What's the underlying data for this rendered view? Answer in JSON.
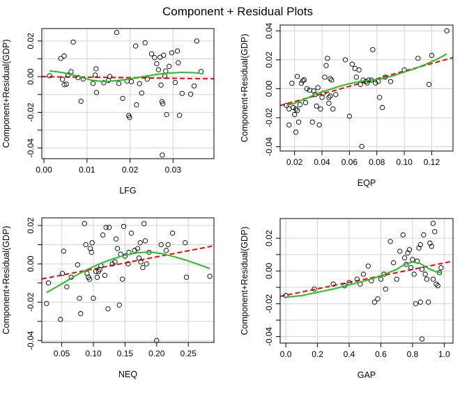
{
  "title": "Component + Residual Plots",
  "colors": {
    "points": "#000000",
    "linear_fit": "#ff0000",
    "smooth": "#22c022",
    "grid": "#d3d3d3"
  },
  "chart_data": [
    {
      "type": "scatter",
      "xlabel": "LFG",
      "ylabel": "Component+Residual(GDP)",
      "xlim": [
        -0.0005,
        0.0395
      ],
      "ylim": [
        -0.046,
        0.027
      ],
      "xticks": [
        0.0,
        0.01,
        0.02,
        0.03
      ],
      "xtick_labels": [
        "0.00",
        "0.01",
        "0.02",
        "0.03"
      ],
      "yticks": [
        -0.04,
        -0.03,
        -0.02,
        -0.01,
        0.0,
        0.01,
        0.02
      ],
      "ytick_labels": [
        "-0.04",
        "",
        "-0.02",
        "",
        "0.00",
        "",
        "0.02"
      ],
      "grid": true,
      "points": [
        [
          0.0013,
          0.0005
        ],
        [
          0.0039,
          0.0102
        ],
        [
          0.0047,
          0.0116
        ],
        [
          0.0043,
          -0.0015
        ],
        [
          0.0047,
          -0.0045
        ],
        [
          0.0052,
          -0.0042
        ],
        [
          0.0056,
          0.0009
        ],
        [
          0.0063,
          0.0028
        ],
        [
          0.0068,
          0.0194
        ],
        [
          0.0079,
          -0.0005
        ],
        [
          0.0086,
          -0.0138
        ],
        [
          0.0091,
          -0.0013
        ],
        [
          0.0114,
          -0.0038
        ],
        [
          0.0119,
          0.0009
        ],
        [
          0.0121,
          0.0044
        ],
        [
          0.0122,
          -0.0089
        ],
        [
          0.0139,
          -0.0034
        ],
        [
          0.015,
          -0.0021
        ],
        [
          0.0153,
          0.0001
        ],
        [
          0.0169,
          0.0248
        ],
        [
          0.0174,
          -0.0038
        ],
        [
          0.0183,
          -0.0122
        ],
        [
          0.0193,
          -0.0025
        ],
        [
          0.0197,
          -0.0218
        ],
        [
          0.0199,
          -0.0229
        ],
        [
          0.0203,
          -0.0028
        ],
        [
          0.0213,
          0.0172
        ],
        [
          0.0215,
          -0.0158
        ],
        [
          0.0222,
          -0.0039
        ],
        [
          0.0227,
          -0.0092
        ],
        [
          0.0235,
          0.019
        ],
        [
          0.024,
          -0.0014
        ],
        [
          0.025,
          0.0128
        ],
        [
          0.0257,
          0.0107
        ],
        [
          0.0262,
          0.0073
        ],
        [
          0.0266,
          0.0039
        ],
        [
          0.027,
          0.0109
        ],
        [
          0.0272,
          -0.0047
        ],
        [
          0.0274,
          -0.014
        ],
        [
          0.0276,
          -0.0152
        ],
        [
          0.0278,
          0.012
        ],
        [
          0.0281,
          0.0003
        ],
        [
          0.0283,
          0.0032
        ],
        [
          0.0275,
          -0.044
        ],
        [
          0.0285,
          -0.0213
        ],
        [
          0.0291,
          0.0058
        ],
        [
          0.0297,
          0.0134
        ],
        [
          0.0305,
          -0.0033
        ],
        [
          0.031,
          0.0144
        ],
        [
          0.0312,
          0.0078
        ],
        [
          0.0315,
          -0.0217
        ],
        [
          0.0321,
          -0.0094
        ],
        [
          0.0341,
          -0.0098
        ],
        [
          0.0349,
          -0.0052
        ],
        [
          0.0355,
          0.02
        ],
        [
          0.0365,
          0.0029
        ]
      ],
      "linear_fit": [
        [
          -0.0005,
          0.0
        ],
        [
          0.0395,
          -0.0012
        ]
      ],
      "smooth": [
        [
          0.0013,
          0.0033
        ],
        [
          0.0045,
          0.0022
        ],
        [
          0.008,
          0.0002
        ],
        [
          0.011,
          -0.002
        ],
        [
          0.014,
          -0.0028
        ],
        [
          0.017,
          -0.0022
        ],
        [
          0.02,
          -0.0013
        ],
        [
          0.023,
          0.0
        ],
        [
          0.026,
          0.0012
        ],
        [
          0.029,
          0.002
        ],
        [
          0.032,
          0.0024
        ],
        [
          0.035,
          0.0022
        ],
        [
          0.037,
          0.0016
        ]
      ]
    },
    {
      "type": "scatter",
      "xlabel": "EQP",
      "ylabel": "Component+Residual(GDP)",
      "xlim": [
        0.0095,
        0.1355
      ],
      "ylim": [
        -0.043,
        0.044
      ],
      "xticks": [
        0.02,
        0.04,
        0.06,
        0.08,
        0.1,
        0.12
      ],
      "xtick_labels": [
        "0.02",
        "0.04",
        "0.06",
        "0.08",
        "0.10",
        "0.12"
      ],
      "yticks": [
        -0.04,
        -0.02,
        0.0,
        0.02,
        0.04
      ],
      "ytick_labels": [
        "-0.04",
        "-0.02",
        "0.00",
        "0.02",
        "0.04"
      ],
      "grid": true,
      "points": [
        [
          0.014,
          -0.0115
        ],
        [
          0.016,
          -0.014
        ],
        [
          0.016,
          -0.025
        ],
        [
          0.018,
          0.0038
        ],
        [
          0.019,
          -0.013
        ],
        [
          0.02,
          -0.0178
        ],
        [
          0.021,
          -0.03
        ],
        [
          0.021,
          -0.014
        ],
        [
          0.022,
          0.0085
        ],
        [
          0.022,
          -0.015
        ],
        [
          0.023,
          -0.023
        ],
        [
          0.024,
          -0.011
        ],
        [
          0.025,
          0.0038
        ],
        [
          0.026,
          0.0055
        ],
        [
          0.027,
          0.0062
        ],
        [
          0.028,
          -0.0096
        ],
        [
          0.029,
          0.0
        ],
        [
          0.031,
          -0.001
        ],
        [
          0.033,
          -0.023
        ],
        [
          0.034,
          -0.0015
        ],
        [
          0.035,
          -0.004
        ],
        [
          0.036,
          -0.012
        ],
        [
          0.037,
          0.0008
        ],
        [
          0.038,
          -0.025
        ],
        [
          0.039,
          -0.014
        ],
        [
          0.04,
          -0.006
        ],
        [
          0.041,
          -0.003
        ],
        [
          0.042,
          0.008
        ],
        [
          0.043,
          0.016
        ],
        [
          0.044,
          0.021
        ],
        [
          0.045,
          -0.01
        ],
        [
          0.045,
          -0.006
        ],
        [
          0.046,
          -0.005
        ],
        [
          0.046,
          0.007
        ],
        [
          0.047,
          0.006
        ],
        [
          0.048,
          -0.014
        ],
        [
          0.05,
          -0.004
        ],
        [
          0.057,
          0.02
        ],
        [
          0.06,
          -0.019
        ],
        [
          0.062,
          0.017
        ],
        [
          0.064,
          0.014
        ],
        [
          0.065,
          0.008
        ],
        [
          0.067,
          0.013
        ],
        [
          0.068,
          0.003
        ],
        [
          0.069,
          -0.0398
        ],
        [
          0.07,
          0.006
        ],
        [
          0.072,
          0.005
        ],
        [
          0.073,
          0.004
        ],
        [
          0.074,
          0.006
        ],
        [
          0.076,
          0.006
        ],
        [
          0.077,
          0.027
        ],
        [
          0.079,
          0.004
        ],
        [
          0.081,
          0.005
        ],
        [
          0.082,
          -0.006
        ],
        [
          0.084,
          -0.013
        ],
        [
          0.086,
          0.008
        ],
        [
          0.09,
          0.005
        ],
        [
          0.1,
          0.013
        ],
        [
          0.11,
          0.021
        ],
        [
          0.118,
          0.003
        ],
        [
          0.12,
          0.023
        ],
        [
          0.131,
          0.04
        ]
      ],
      "linear_fit": [
        [
          0.0095,
          -0.0116
        ],
        [
          0.1355,
          0.0215
        ]
      ],
      "smooth": [
        [
          0.014,
          -0.0115
        ],
        [
          0.02,
          -0.01
        ],
        [
          0.028,
          -0.007
        ],
        [
          0.036,
          -0.0035
        ],
        [
          0.044,
          -0.001
        ],
        [
          0.052,
          0.0015
        ],
        [
          0.06,
          0.0035
        ],
        [
          0.068,
          0.005
        ],
        [
          0.076,
          0.006
        ],
        [
          0.084,
          0.007
        ],
        [
          0.092,
          0.009
        ],
        [
          0.1,
          0.0115
        ],
        [
          0.108,
          0.014
        ],
        [
          0.116,
          0.017
        ],
        [
          0.124,
          0.0205
        ],
        [
          0.131,
          0.024
        ]
      ]
    },
    {
      "type": "scatter",
      "xlabel": "NEQ",
      "ylabel": "Component+Residual(GDP)",
      "xlim": [
        0.0185,
        0.2905
      ],
      "ylim": [
        -0.041,
        0.024
      ],
      "xticks": [
        0.05,
        0.1,
        0.15,
        0.2,
        0.25
      ],
      "xtick_labels": [
        "0.05",
        "0.10",
        "0.15",
        "0.20",
        "0.25"
      ],
      "yticks": [
        -0.04,
        -0.03,
        -0.02,
        -0.01,
        0.0,
        0.01,
        0.02
      ],
      "ytick_labels": [
        "-0.04",
        "",
        "-0.02",
        "",
        "0.00",
        "",
        "0.02"
      ],
      "grid": true,
      "points": [
        [
          0.026,
          -0.0207
        ],
        [
          0.029,
          -0.01
        ],
        [
          0.048,
          -0.029
        ],
        [
          0.051,
          -0.005
        ],
        [
          0.053,
          0.0066
        ],
        [
          0.058,
          -0.012
        ],
        [
          0.065,
          -0.007
        ],
        [
          0.075,
          -0.0005
        ],
        [
          0.078,
          -0.018
        ],
        [
          0.08,
          -0.026
        ],
        [
          0.086,
          0.021
        ],
        [
          0.088,
          0.01
        ],
        [
          0.09,
          -0.005
        ],
        [
          0.092,
          -0.007
        ],
        [
          0.094,
          -0.008
        ],
        [
          0.095,
          0.008
        ],
        [
          0.097,
          0.006
        ],
        [
          0.098,
          0.011
        ],
        [
          0.1,
          -0.018
        ],
        [
          0.104,
          -0.004
        ],
        [
          0.106,
          -0.007
        ],
        [
          0.108,
          -0.004
        ],
        [
          0.11,
          -0.003
        ],
        [
          0.112,
          -0.001
        ],
        [
          0.115,
          0.015
        ],
        [
          0.118,
          -0.006
        ],
        [
          0.12,
          0.019
        ],
        [
          0.123,
          -0.0235
        ],
        [
          0.125,
          0.019
        ],
        [
          0.13,
          0.0
        ],
        [
          0.134,
          0.001
        ],
        [
          0.136,
          0.013
        ],
        [
          0.138,
          0.008
        ],
        [
          0.141,
          -0.0215
        ],
        [
          0.143,
          0.005
        ],
        [
          0.146,
          -0.008
        ],
        [
          0.148,
          0.0195
        ],
        [
          0.15,
          0.004
        ],
        [
          0.155,
          0.0
        ],
        [
          0.156,
          0.006
        ],
        [
          0.16,
          0.016
        ],
        [
          0.165,
          0.007
        ],
        [
          0.17,
          0.008
        ],
        [
          0.172,
          0.003
        ],
        [
          0.174,
          0.011
        ],
        [
          0.175,
          0.001
        ],
        [
          0.178,
          -0.002
        ],
        [
          0.18,
          0.021
        ],
        [
          0.182,
          0.012
        ],
        [
          0.184,
          0.0
        ],
        [
          0.188,
          0.006
        ],
        [
          0.2,
          -0.04
        ],
        [
          0.207,
          0.01
        ],
        [
          0.215,
          0.007
        ],
        [
          0.218,
          0.01
        ],
        [
          0.225,
          0.016
        ],
        [
          0.245,
          0.011
        ],
        [
          0.247,
          -0.007
        ],
        [
          0.284,
          -0.0065
        ]
      ],
      "linear_fit": [
        [
          0.0185,
          -0.0079
        ],
        [
          0.2905,
          0.0094
        ]
      ],
      "smooth": [
        [
          0.026,
          -0.015
        ],
        [
          0.05,
          -0.0105
        ],
        [
          0.07,
          -0.0065
        ],
        [
          0.09,
          -0.003
        ],
        [
          0.11,
          0.0
        ],
        [
          0.13,
          0.0025
        ],
        [
          0.15,
          0.0045
        ],
        [
          0.17,
          0.0058
        ],
        [
          0.19,
          0.0062
        ],
        [
          0.21,
          0.0052
        ],
        [
          0.23,
          0.0035
        ],
        [
          0.25,
          0.0015
        ],
        [
          0.27,
          -0.0008
        ],
        [
          0.284,
          -0.0025
        ]
      ]
    },
    {
      "type": "scatter",
      "xlabel": "GAP",
      "ylabel": "Component+Residual(GDP)",
      "xlim": [
        -0.0355,
        1.0555
      ],
      "ylim": [
        -0.044,
        0.032
      ],
      "xticks": [
        0.0,
        0.2,
        0.4,
        0.6,
        0.8,
        1.0
      ],
      "xtick_labels": [
        "0.0",
        "0.2",
        "0.4",
        "0.6",
        "0.8",
        "1.0"
      ],
      "yticks": [
        -0.04,
        -0.03,
        -0.02,
        -0.01,
        0.0,
        0.01,
        0.02
      ],
      "ytick_labels": [
        "-0.04",
        "",
        "-0.02",
        "",
        "0.00",
        "",
        "0.02"
      ],
      "grid": true,
      "points": [
        [
          0.0,
          -0.015
        ],
        [
          0.18,
          -0.011
        ],
        [
          0.3,
          -0.008
        ],
        [
          0.37,
          -0.009
        ],
        [
          0.4,
          -0.007
        ],
        [
          0.45,
          -0.005
        ],
        [
          0.47,
          -0.008
        ],
        [
          0.49,
          -0.002
        ],
        [
          0.52,
          0.003
        ],
        [
          0.54,
          -0.006
        ],
        [
          0.56,
          -0.019
        ],
        [
          0.58,
          -0.017
        ],
        [
          0.6,
          -0.005
        ],
        [
          0.62,
          -0.002
        ],
        [
          0.63,
          -0.011
        ],
        [
          0.66,
          0.018
        ],
        [
          0.68,
          0.005
        ],
        [
          0.7,
          -0.005
        ],
        [
          0.72,
          0.012
        ],
        [
          0.74,
          0.022
        ],
        [
          0.75,
          0.008
        ],
        [
          0.76,
          0.004
        ],
        [
          0.77,
          0.011
        ],
        [
          0.78,
          0.013
        ],
        [
          0.79,
          0.002
        ],
        [
          0.8,
          0.007
        ],
        [
          0.81,
          -0.002
        ],
        [
          0.82,
          -0.02
        ],
        [
          0.83,
          0.006
        ],
        [
          0.84,
          0.014
        ],
        [
          0.85,
          0.016
        ],
        [
          0.85,
          -0.019
        ],
        [
          0.86,
          -0.0415
        ],
        [
          0.86,
          0.001
        ],
        [
          0.87,
          0.022
        ],
        [
          0.88,
          -0.002
        ],
        [
          0.89,
          -0.005
        ],
        [
          0.9,
          -0.019
        ],
        [
          0.91,
          0.017
        ],
        [
          0.92,
          0.015
        ],
        [
          0.93,
          0.029
        ],
        [
          0.93,
          -0.005
        ],
        [
          0.94,
          0.024
        ],
        [
          0.95,
          -0.008
        ],
        [
          0.96,
          -0.009
        ],
        [
          0.97,
          -0.001
        ],
        [
          0.98,
          0.002
        ]
      ],
      "linear_fit": [
        [
          -0.0355,
          -0.0155
        ],
        [
          1.0555,
          0.006
        ]
      ],
      "smooth": [
        [
          0.0,
          -0.016
        ],
        [
          0.1,
          -0.015
        ],
        [
          0.2,
          -0.013
        ],
        [
          0.3,
          -0.011
        ],
        [
          0.4,
          -0.0085
        ],
        [
          0.5,
          -0.006
        ],
        [
          0.6,
          -0.003
        ],
        [
          0.7,
          0.001
        ],
        [
          0.75,
          0.004
        ],
        [
          0.8,
          0.0055
        ],
        [
          0.85,
          0.0045
        ],
        [
          0.9,
          0.0015
        ],
        [
          0.95,
          -0.0005
        ],
        [
          0.98,
          -0.001
        ]
      ]
    }
  ]
}
